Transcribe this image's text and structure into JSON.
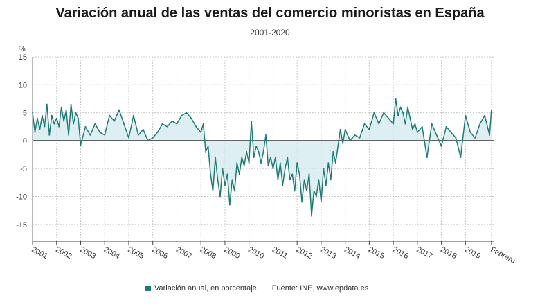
{
  "chart_data": {
    "type": "area",
    "title": "Variación anual de las ventas del comercio minoristas en España",
    "subtitle": "2001-2020",
    "ylabel": "%",
    "ylim": [
      -18,
      15
    ],
    "yticks": [
      15,
      10,
      5,
      0,
      -5,
      -10,
      -15
    ],
    "xlim": [
      2001,
      2020.17
    ],
    "xtick_positions": [
      2001,
      2002,
      2003,
      2004,
      2005,
      2006,
      2007,
      2008,
      2009,
      2010,
      2011,
      2012,
      2013,
      2014,
      2015,
      2016,
      2017,
      2018,
      2019,
      2020.08
    ],
    "xtick_labels": [
      "2001",
      "2002",
      "2003",
      "2004",
      "2005",
      "2006",
      "2007",
      "2008",
      "2009",
      "2010",
      "2011",
      "2012",
      "2013",
      "2014",
      "2015",
      "2016",
      "2017",
      "2018",
      "2019",
      "Febrero"
    ],
    "grid": true,
    "color": "#1f7a75",
    "fill_color": "#cfe8ec",
    "series": [
      {
        "name": "Variación anual, en porcentaje",
        "x": [
          2001.0,
          2001.1,
          2001.2,
          2001.3,
          2001.4,
          2001.5,
          2001.6,
          2001.7,
          2001.8,
          2001.9,
          2002.0,
          2002.1,
          2002.2,
          2002.3,
          2002.4,
          2002.5,
          2002.6,
          2002.7,
          2002.8,
          2002.9,
          2003.0,
          2003.2,
          2003.4,
          2003.6,
          2003.8,
          2004.0,
          2004.2,
          2004.4,
          2004.6,
          2004.8,
          2005.0,
          2005.2,
          2005.4,
          2005.6,
          2005.8,
          2006.0,
          2006.2,
          2006.4,
          2006.6,
          2006.8,
          2007.0,
          2007.2,
          2007.4,
          2007.6,
          2007.8,
          2008.0,
          2008.1,
          2008.2,
          2008.3,
          2008.4,
          2008.5,
          2008.6,
          2008.7,
          2008.8,
          2008.9,
          2009.0,
          2009.1,
          2009.2,
          2009.3,
          2009.4,
          2009.5,
          2009.6,
          2009.7,
          2009.8,
          2009.9,
          2010.0,
          2010.1,
          2010.2,
          2010.3,
          2010.4,
          2010.5,
          2010.6,
          2010.7,
          2010.8,
          2010.9,
          2011.0,
          2011.1,
          2011.2,
          2011.3,
          2011.4,
          2011.5,
          2011.6,
          2011.7,
          2011.8,
          2011.9,
          2012.0,
          2012.1,
          2012.2,
          2012.3,
          2012.4,
          2012.5,
          2012.6,
          2012.7,
          2012.8,
          2012.9,
          2013.0,
          2013.1,
          2013.2,
          2013.3,
          2013.4,
          2013.5,
          2013.6,
          2013.7,
          2013.8,
          2013.9,
          2014.0,
          2014.2,
          2014.4,
          2014.6,
          2014.8,
          2015.0,
          2015.2,
          2015.4,
          2015.6,
          2015.8,
          2016.0,
          2016.1,
          2016.2,
          2016.3,
          2016.4,
          2016.5,
          2016.6,
          2016.7,
          2016.8,
          2016.9,
          2017.0,
          2017.2,
          2017.4,
          2017.6,
          2017.8,
          2018.0,
          2018.2,
          2018.4,
          2018.6,
          2018.8,
          2019.0,
          2019.2,
          2019.4,
          2019.6,
          2019.8,
          2020.0,
          2020.08
        ],
        "values": [
          5,
          1.5,
          4,
          2,
          4.5,
          2.5,
          6.5,
          1,
          4.5,
          3,
          4,
          2.5,
          6,
          3.5,
          5.5,
          1,
          6.5,
          3,
          5,
          4,
          -0.8,
          2.5,
          1,
          3,
          1.5,
          1,
          4.5,
          3.5,
          5.5,
          3,
          0.5,
          4.5,
          1,
          2,
          0,
          0.5,
          1.5,
          3,
          2.5,
          3.5,
          3,
          4.5,
          5,
          4,
          2.5,
          1.5,
          3,
          -2,
          -1,
          -6,
          -9,
          -3,
          -7,
          -10,
          -5,
          -8,
          -6,
          -11.5,
          -7,
          -9,
          -4,
          -6,
          -3,
          -4.5,
          -2,
          -4,
          3.5,
          -3,
          -1,
          -2,
          -4,
          -2,
          1,
          -4.5,
          -3,
          -5,
          -3,
          -7,
          -4,
          -8,
          -5,
          -3,
          -7,
          -6,
          -9,
          -4,
          -6,
          -11,
          -7,
          -9,
          -6,
          -13.5,
          -9,
          -10,
          -7,
          -11,
          -5,
          -8,
          -4,
          -7,
          -2,
          -4,
          -1,
          2,
          -0.5,
          2,
          0,
          1,
          0.5,
          3,
          2,
          5,
          3,
          5,
          4,
          3,
          7.5,
          4.5,
          6,
          5,
          3,
          6,
          4,
          2,
          3,
          1.5,
          2.5,
          -3,
          3,
          1,
          -1,
          2.5,
          1.5,
          0.5,
          -3,
          4.5,
          1.5,
          0.5,
          3,
          4.5,
          1,
          5.5
        ]
      }
    ]
  },
  "legend": {
    "label": "Variación anual, en porcentaje",
    "source": "Fuente: INE, www.epdata.es"
  }
}
